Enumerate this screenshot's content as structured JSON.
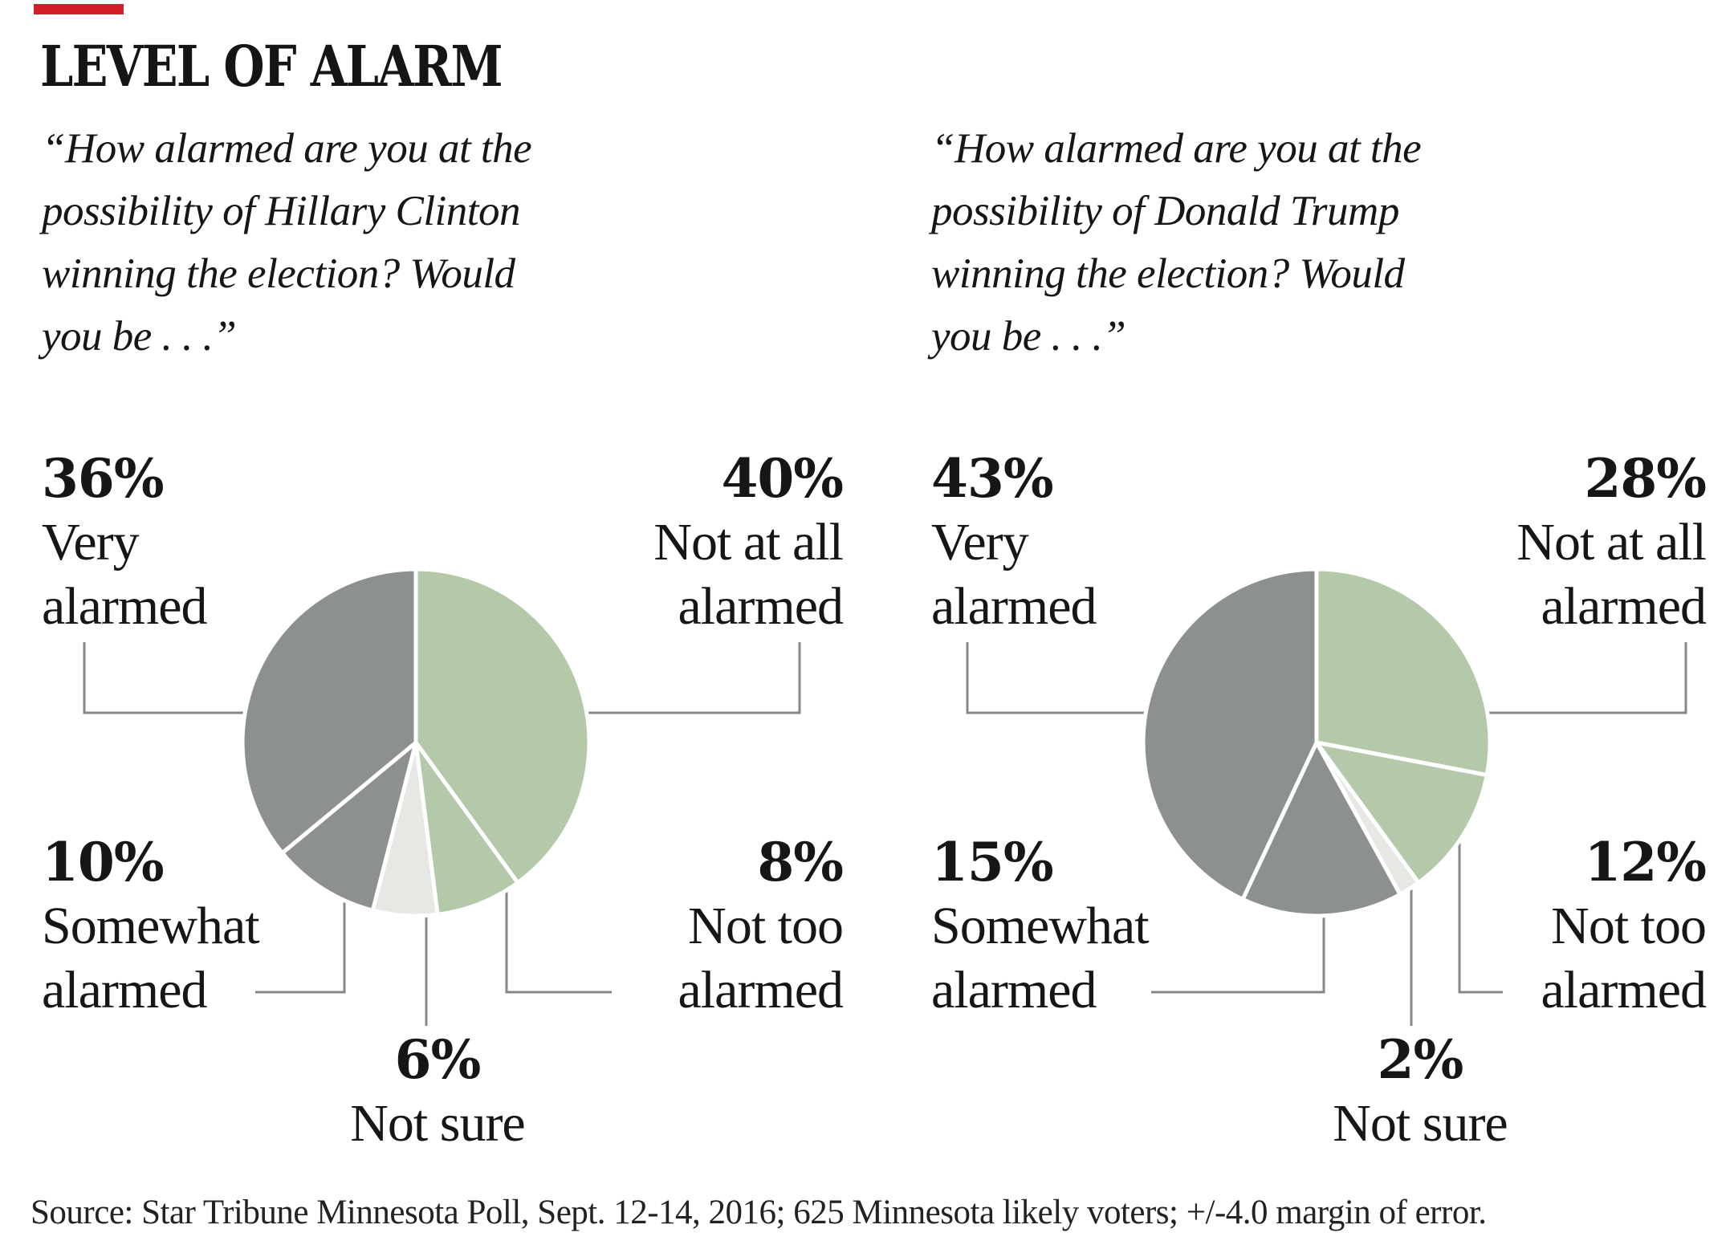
{
  "header": {
    "kicker_bar_color": "#d0202a",
    "title": "LEVEL OF ALARM"
  },
  "palette": {
    "alarmed_gray": "#8d918d",
    "not_alarmed_green": "#b3c9a9",
    "not_sure_gray": "#e6e8e4",
    "divider_white": "#ffffff",
    "connector_gray": "#878787",
    "text_black": "#1a1a1a"
  },
  "chart_data": [
    {
      "type": "pie",
      "subject": "Hillary Clinton",
      "question": "“How alarmed are you at the\npossibility of Hillary Clinton\nwinning the election? Would\nyou be . . .”",
      "slices_clockwise_from_top": [
        {
          "label": "Not at all alarmed",
          "value": 40,
          "color_key": "not_alarmed_green"
        },
        {
          "label": "Not too alarmed",
          "value": 8,
          "color_key": "not_alarmed_green"
        },
        {
          "label": "Not sure",
          "value": 6,
          "color_key": "not_sure_gray"
        },
        {
          "label": "Somewhat alarmed",
          "value": 10,
          "color_key": "alarmed_gray"
        },
        {
          "label": "Very alarmed",
          "value": 36,
          "color_key": "alarmed_gray"
        }
      ],
      "callouts": {
        "very": {
          "pct": "36%",
          "label": "Very\nalarmed"
        },
        "not_at_all": {
          "pct": "40%",
          "label": "Not at all\nalarmed"
        },
        "somewhat": {
          "pct": "10%",
          "label": "Somewhat\nalarmed"
        },
        "not_too": {
          "pct": "8%",
          "label": "Not too\nalarmed"
        },
        "not_sure": {
          "pct": "6%",
          "label": "Not sure"
        }
      }
    },
    {
      "type": "pie",
      "subject": "Donald Trump",
      "question": "“How alarmed are you at the\npossibility of Donald Trump\nwinning the election? Would\nyou be . . .”",
      "slices_clockwise_from_top": [
        {
          "label": "Not at all alarmed",
          "value": 28,
          "color_key": "not_alarmed_green"
        },
        {
          "label": "Not too alarmed",
          "value": 12,
          "color_key": "not_alarmed_green"
        },
        {
          "label": "Not sure",
          "value": 2,
          "color_key": "not_sure_gray"
        },
        {
          "label": "Somewhat alarmed",
          "value": 15,
          "color_key": "alarmed_gray"
        },
        {
          "label": "Very alarmed",
          "value": 43,
          "color_key": "alarmed_gray"
        }
      ],
      "callouts": {
        "very": {
          "pct": "43%",
          "label": "Very\nalarmed"
        },
        "not_at_all": {
          "pct": "28%",
          "label": "Not at all\nalarmed"
        },
        "somewhat": {
          "pct": "15%",
          "label": "Somewhat\nalarmed"
        },
        "not_too": {
          "pct": "12%",
          "label": "Not too\nalarmed"
        },
        "not_sure": {
          "pct": "2%",
          "label": "Not sure"
        }
      }
    }
  ],
  "source_line": "Source: Star Tribune Minnesota Poll, Sept. 12-14, 2016; 625 Minnesota likely voters; +/-4.0 margin of error."
}
